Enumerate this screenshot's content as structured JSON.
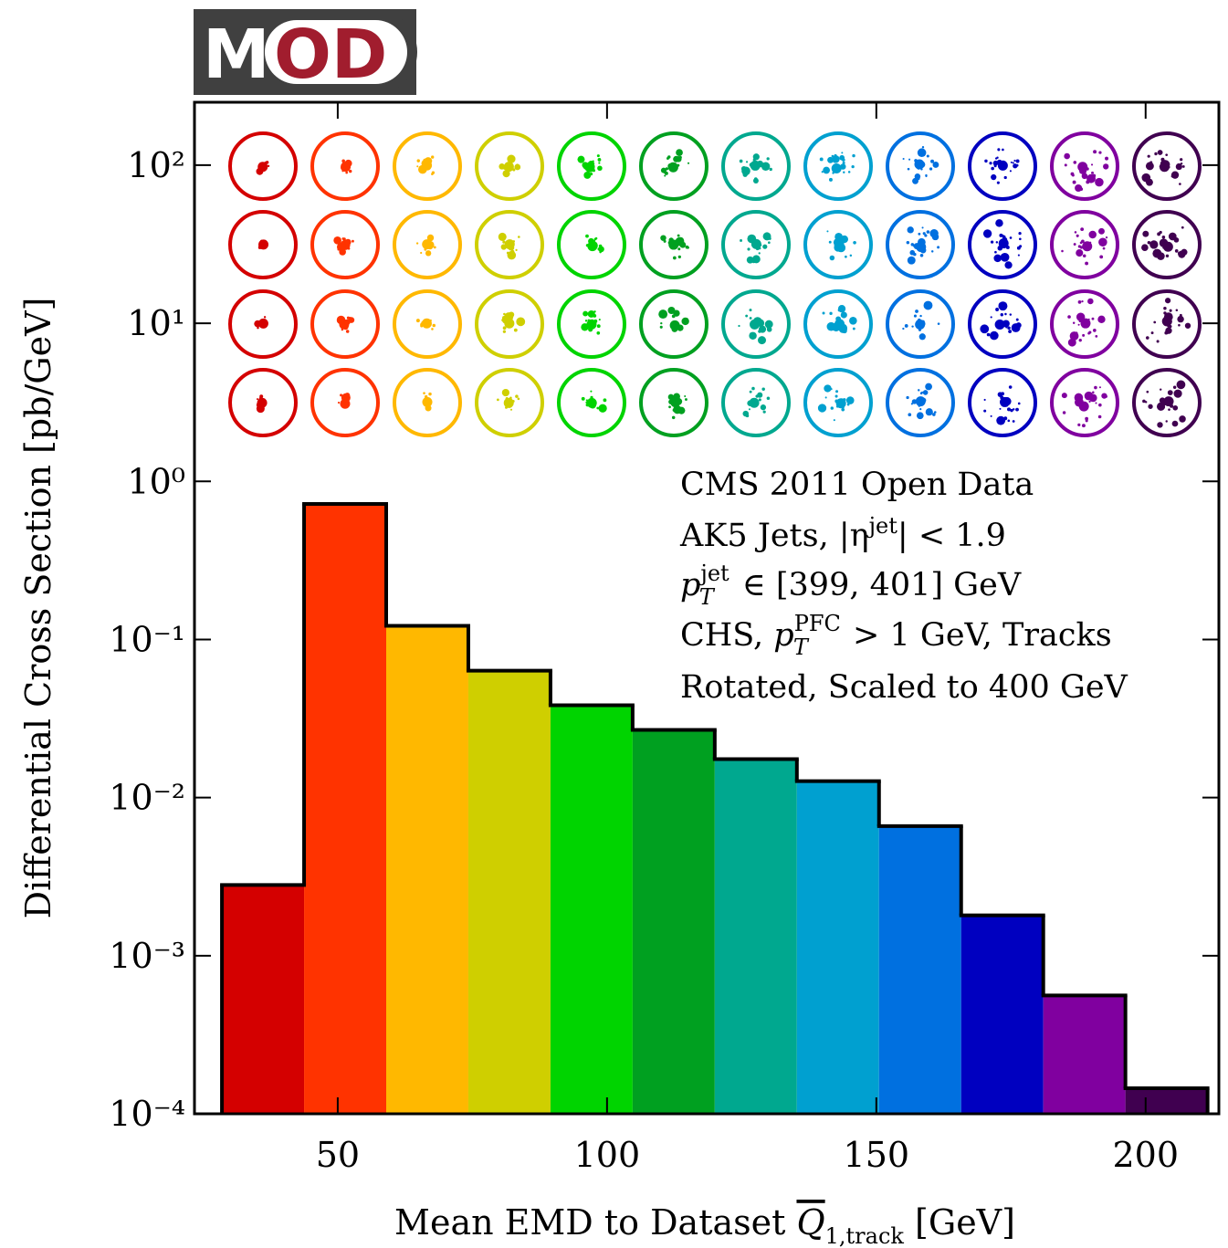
{
  "logo": {
    "left": "M",
    "right": "OD"
  },
  "chart_data": {
    "type": "histogram",
    "xlabel": [
      "Mean EMD to Dataset ",
      "Q",
      "1,track",
      " [GeV]"
    ],
    "ylabel": "Differential Cross Section [pb/GeV]",
    "annotations": [
      [
        "CMS 2011 Open Data"
      ],
      [
        "AK5 Jets, |η",
        "jet",
        "| < 1.9"
      ],
      [
        "p",
        "jet",
        "T",
        " ∈ [399, 401] GeV"
      ],
      [
        "CHS, ",
        "p",
        "PFC",
        "T",
        " > 1 GeV, Tracks"
      ],
      [
        "Rotated, Scaled to 400 GeV"
      ]
    ],
    "bins": [
      28.5,
      43.75,
      59,
      74.25,
      89.5,
      104.75,
      120,
      135.25,
      150.5,
      165.75,
      181,
      196.25,
      211.5
    ],
    "values": [
      0.0028,
      0.72,
      0.122,
      0.0635,
      0.0384,
      0.0268,
      0.0175,
      0.0127,
      0.0066,
      0.0018,
      0.00056,
      0.000145
    ],
    "colors": [
      "#d40000",
      "#ff3300",
      "#ffb800",
      "#cfcf00",
      "#00d400",
      "#00a020",
      "#00a88f",
      "#00a0d0",
      "#0070e0",
      "#0000c0",
      "#80009f",
      "#400050"
    ],
    "xlim": [
      23.4,
      213.6
    ],
    "ylim": [
      0.0001,
      250
    ],
    "log_y": true,
    "xticks": [
      50,
      100,
      150,
      200
    ],
    "yticks": [
      {
        "value": 100,
        "label": "10²"
      },
      {
        "value": 10,
        "label": "10¹"
      },
      {
        "value": 1,
        "label": "10⁰"
      },
      {
        "value": 0.1,
        "label": "10⁻¹"
      },
      {
        "value": 0.01,
        "label": "10⁻²"
      },
      {
        "value": 0.001,
        "label": "10⁻³"
      },
      {
        "value": 0.0001,
        "label": "10⁻⁴"
      }
    ]
  }
}
